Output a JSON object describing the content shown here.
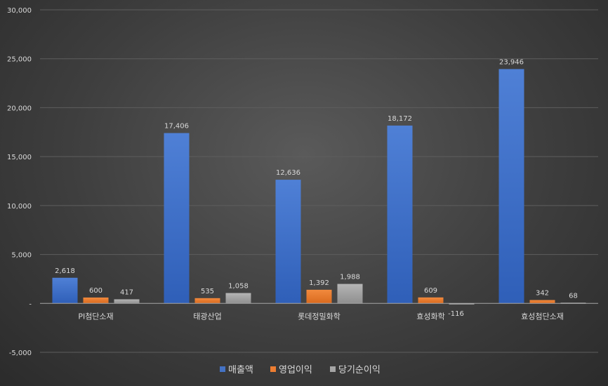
{
  "chart_data": {
    "type": "bar",
    "categories": [
      "PI첨단소재",
      "태광산업",
      "롯데정밀화학",
      "효성화학",
      "효성첨단소재"
    ],
    "series": [
      {
        "name": "매출액",
        "values": [
          2618,
          17406,
          12636,
          18172,
          23946
        ],
        "color": "#4472c4"
      },
      {
        "name": "영업이익",
        "values": [
          600,
          535,
          1392,
          609,
          342
        ],
        "color": "#ed7d31"
      },
      {
        "name": "당기순이익",
        "values": [
          417,
          1058,
          1988,
          -116,
          68
        ],
        "color": "#a5a5a5"
      }
    ],
    "data_labels": [
      [
        "2,618",
        "17,406",
        "12,636",
        "18,172",
        "23,946"
      ],
      [
        "600",
        "535",
        "1,392",
        "609",
        "342"
      ],
      [
        "417",
        "1,058",
        "1,988",
        "-116",
        "68"
      ]
    ],
    "y_ticks": [
      -5000,
      0,
      5000,
      10000,
      15000,
      20000,
      25000,
      30000
    ],
    "y_tick_labels": [
      "-5,000",
      "-",
      "5,000",
      "10,000",
      "15,000",
      "20,000",
      "25,000",
      "30,000"
    ],
    "ylim": [
      -5000,
      30000
    ],
    "grid": true,
    "legend_position": "bottom",
    "title": "",
    "xlabel": "",
    "ylabel": ""
  }
}
